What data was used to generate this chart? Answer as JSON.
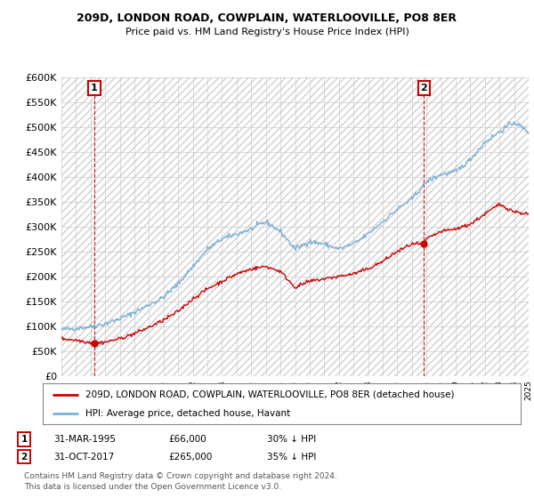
{
  "title1": "209D, LONDON ROAD, COWPLAIN, WATERLOOVILLE, PO8 8ER",
  "title2": "Price paid vs. HM Land Registry's House Price Index (HPI)",
  "ylim": [
    0,
    600000
  ],
  "yticks": [
    0,
    50000,
    100000,
    150000,
    200000,
    250000,
    300000,
    350000,
    400000,
    450000,
    500000,
    550000,
    600000
  ],
  "ytick_labels": [
    "£0",
    "£50K",
    "£100K",
    "£150K",
    "£200K",
    "£250K",
    "£300K",
    "£350K",
    "£400K",
    "£450K",
    "£500K",
    "£550K",
    "£600K"
  ],
  "sale1_year": 1995.25,
  "sale1_price": 66000,
  "sale2_year": 2017.83,
  "sale2_price": 265000,
  "legend_house": "209D, LONDON ROAD, COWPLAIN, WATERLOOVILLE, PO8 8ER (detached house)",
  "legend_hpi": "HPI: Average price, detached house, Havant",
  "footer": "Contains HM Land Registry data © Crown copyright and database right 2024.\nThis data is licensed under the Open Government Licence v3.0.",
  "house_color": "#cc0000",
  "hpi_color": "#7ab0d4",
  "grid_color": "#cccccc",
  "hpi_anchors_x": [
    1993,
    1994,
    1995,
    1996,
    1997,
    1998,
    1999,
    2000,
    2001,
    2002,
    2003,
    2004,
    2005,
    2006,
    2007,
    2008,
    2009,
    2010,
    2011,
    2012,
    2013,
    2014,
    2015,
    2016,
    2017,
    2018,
    2019,
    2020,
    2021,
    2022,
    2023,
    2024,
    2025
  ],
  "hpi_anchors_y": [
    93000,
    96000,
    99000,
    105000,
    115000,
    128000,
    143000,
    158000,
    185000,
    220000,
    255000,
    275000,
    285000,
    295000,
    310000,
    290000,
    255000,
    270000,
    265000,
    255000,
    265000,
    285000,
    310000,
    335000,
    355000,
    390000,
    405000,
    410000,
    435000,
    470000,
    490000,
    510000,
    490000
  ],
  "house_anchors_x": [
    1993,
    1994,
    1995.25,
    1996,
    1997,
    1998,
    1999,
    2000,
    2001,
    2002,
    2003,
    2004,
    2005,
    2006,
    2007,
    2008,
    2009,
    2010,
    2011,
    2012,
    2013,
    2014,
    2015,
    2016,
    2017,
    2017.83,
    2018,
    2019,
    2020,
    2021,
    2022,
    2023,
    2024,
    2025
  ],
  "house_anchors_y": [
    75000,
    72000,
    66000,
    68000,
    75000,
    85000,
    98000,
    112000,
    130000,
    155000,
    175000,
    190000,
    205000,
    215000,
    220000,
    210000,
    178000,
    190000,
    195000,
    200000,
    205000,
    215000,
    230000,
    250000,
    265000,
    265000,
    275000,
    290000,
    295000,
    305000,
    325000,
    345000,
    330000,
    325000
  ]
}
